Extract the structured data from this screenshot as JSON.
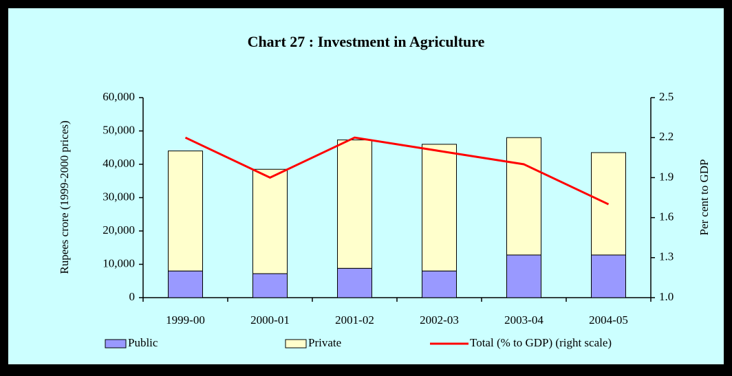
{
  "chart_data": {
    "type": "bar",
    "title": "Chart 27 : Investment in Agriculture",
    "y_label": "Rupees crore (1999-2000 prices)",
    "y2_label": "Per cent to GDP",
    "categories": [
      "1999-00",
      "2000-01",
      "2001-02",
      "2002-03",
      "2003-04",
      "2004-05"
    ],
    "series": [
      {
        "name": "Public",
        "color": "#9999ff",
        "values": [
          8000,
          7200,
          8800,
          8000,
          12800,
          12800
        ]
      },
      {
        "name": "Private",
        "color": "#ffffcc",
        "values": [
          36000,
          31300,
          38500,
          38000,
          35200,
          30700
        ]
      },
      {
        "name": "Total (% to GDP) (right scale)",
        "color": "#ff0000",
        "axis": "y2",
        "type": "line",
        "values": [
          2.2,
          1.9,
          2.2,
          2.1,
          2.0,
          1.7
        ]
      }
    ],
    "ylim": [
      0,
      60000
    ],
    "yticks": [
      0,
      {
        "value": 10000,
        "label": "10,000"
      },
      {
        "value": 20000,
        "label": "20,000"
      },
      {
        "value": 30000,
        "label": "30,000"
      },
      {
        "value": 40000,
        "label": "40,000"
      },
      {
        "value": 50000,
        "label": "50,000"
      },
      {
        "value": 60000,
        "label": "60,000"
      }
    ],
    "y2lim": [
      1.0,
      2.5
    ],
    "y2ticks": [
      {
        "value": 1.0,
        "label": "1.0"
      },
      1.3,
      1.6,
      1.9,
      2.2,
      2.5
    ],
    "stacked": true,
    "legend": "bottom",
    "background": "#ccffff"
  }
}
